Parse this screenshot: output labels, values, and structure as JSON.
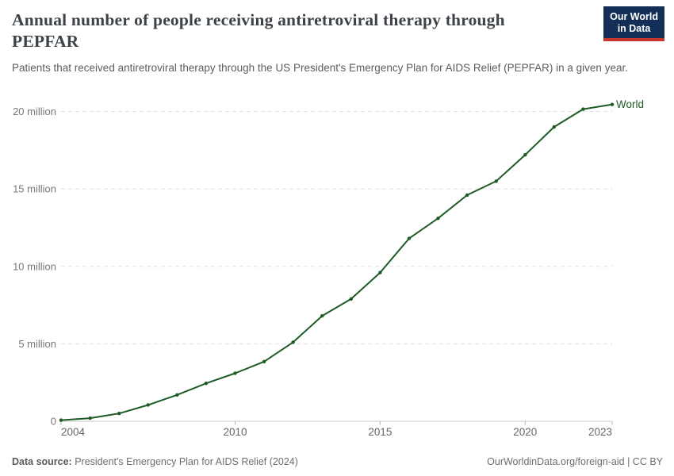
{
  "header": {
    "title": "Annual number of people receiving antiretroviral therapy through PEPFAR",
    "subtitle": "Patients that received antiretroviral therapy through the US President's Emergency Plan for AIDS Relief (PEPFAR) in a given year.",
    "logo": {
      "line1": "Our World",
      "line2": "in Data"
    }
  },
  "chart_data": {
    "type": "line",
    "title": "Annual number of people receiving antiretroviral therapy through PEPFAR",
    "unit": "million people",
    "x_range": [
      2004,
      2023
    ],
    "y_range": [
      0,
      20
    ],
    "x_ticks": [
      2004,
      2010,
      2015,
      2020,
      2023
    ],
    "y_ticks": [
      {
        "value": 0,
        "label": "0"
      },
      {
        "value": 5,
        "label": "5 million"
      },
      {
        "value": 10,
        "label": "10 million"
      },
      {
        "value": 15,
        "label": "15 million"
      },
      {
        "value": 20,
        "label": "20 million"
      }
    ],
    "grid": "horizontal-dashed",
    "legend": "end-of-line-label",
    "series": [
      {
        "name": "World",
        "color": "#1d5c26",
        "x": [
          2004,
          2005,
          2006,
          2007,
          2008,
          2009,
          2010,
          2011,
          2012,
          2013,
          2014,
          2015,
          2016,
          2017,
          2018,
          2019,
          2020,
          2021,
          2022,
          2023
        ],
        "values_millions": [
          0.07,
          0.2,
          0.5,
          1.05,
          1.7,
          2.45,
          3.1,
          3.85,
          5.1,
          6.8,
          7.9,
          9.6,
          11.8,
          13.1,
          14.6,
          15.5,
          17.2,
          19.0,
          20.15,
          20.45
        ]
      }
    ]
  },
  "footer": {
    "datasource_label": "Data source:",
    "datasource_value": " President's Emergency Plan for AIDS Relief (2024)",
    "credit": "OurWorldinData.org/foreign-aid | CC BY"
  },
  "colors": {
    "line_green": "#1d5c26",
    "logo_navy": "#132f58",
    "logo_red": "#c7342c",
    "title_text": "#3c4247",
    "subtitle_text": "#5d5d5d",
    "axis_text": "#666666"
  }
}
